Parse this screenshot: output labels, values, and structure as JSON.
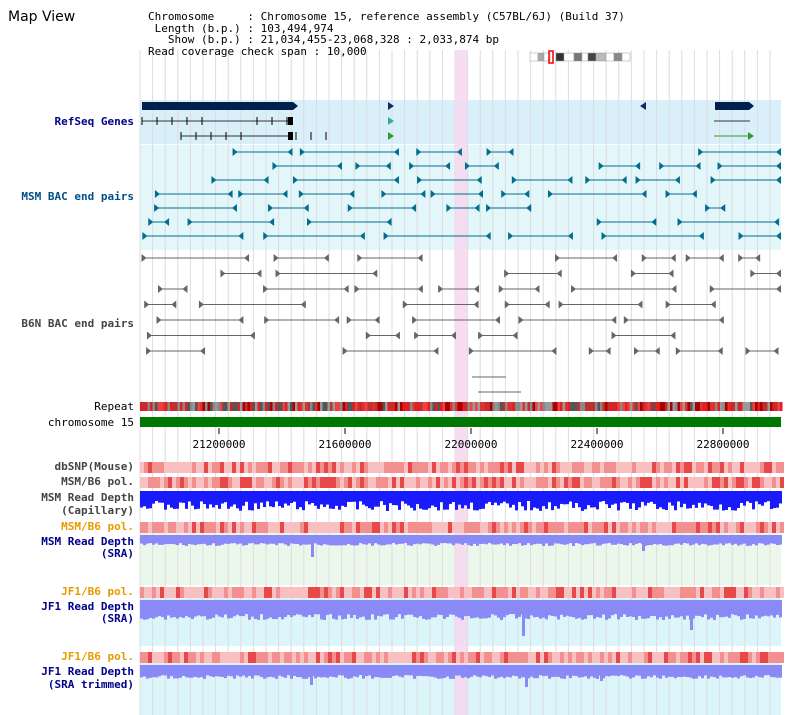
{
  "header": {
    "title": "Map View",
    "chromosome_label": "Chromosome",
    "chromosome_value": "Chromosome 15, reference assembly (C57BL/6J) (Build 37)",
    "length_label": "Length (b.p.)",
    "length_value": "103,494,974",
    "show_label": "Show (b.p.)",
    "show_value": "21,034,455-23,068,328 : 2,033,874 bp",
    "span_label": "Read coverage check span",
    "span_value": "10,000"
  },
  "tracks": {
    "refseq": "RefSeq Genes",
    "msm_bac": "MSM BAC end pairs",
    "b6n_bac": "B6N BAC end pairs",
    "repeat": "Repeat",
    "chromosome": "chromosome 15",
    "dbsnp": "dbSNP(Mouse)",
    "msm_b6_pol_1": "MSM/B6 pol.",
    "msm_depth_cap_1": "MSM Read Depth",
    "msm_depth_cap_2": "(Capillary)",
    "msm_b6_pol_2": "MSM/B6 pol.",
    "msm_depth_sra_1": "MSM Read Depth",
    "msm_depth_sra_2": "(SRA)",
    "jf1_b6_pol_1": "JF1/B6 pol.",
    "jf1_depth_sra_1": "JF1 Read Depth",
    "jf1_depth_sra_2": "(SRA)",
    "jf1_b6_pol_2": "JF1/B6 pol.",
    "jf1_depth_trim_1": "JF1 Read Depth",
    "jf1_depth_trim_2": "(SRA trimmed)"
  },
  "axis": {
    "ticks": [
      "21200000",
      "21600000",
      "22000000",
      "22400000",
      "22800000"
    ],
    "tick_values": [
      21200000,
      21600000,
      22000000,
      22400000,
      22800000
    ],
    "start": 21034455,
    "end": 23068328
  },
  "colors": {
    "refseq_bg": "#d9f0fb",
    "msm_bg": "#e3f6fa",
    "gene": "#00204e",
    "msm_feature": "#006e8f",
    "b6n_feature": "#666666",
    "highlight": "#f7d7f0",
    "chromosome_bar": "#007700",
    "depth_capillary": "#1a1aff",
    "depth_sra": "#8a8af6",
    "pol_red": "#f08080",
    "depth_bg": "#ecf7ec",
    "jf1_bg": "#dcf5fb"
  }
}
